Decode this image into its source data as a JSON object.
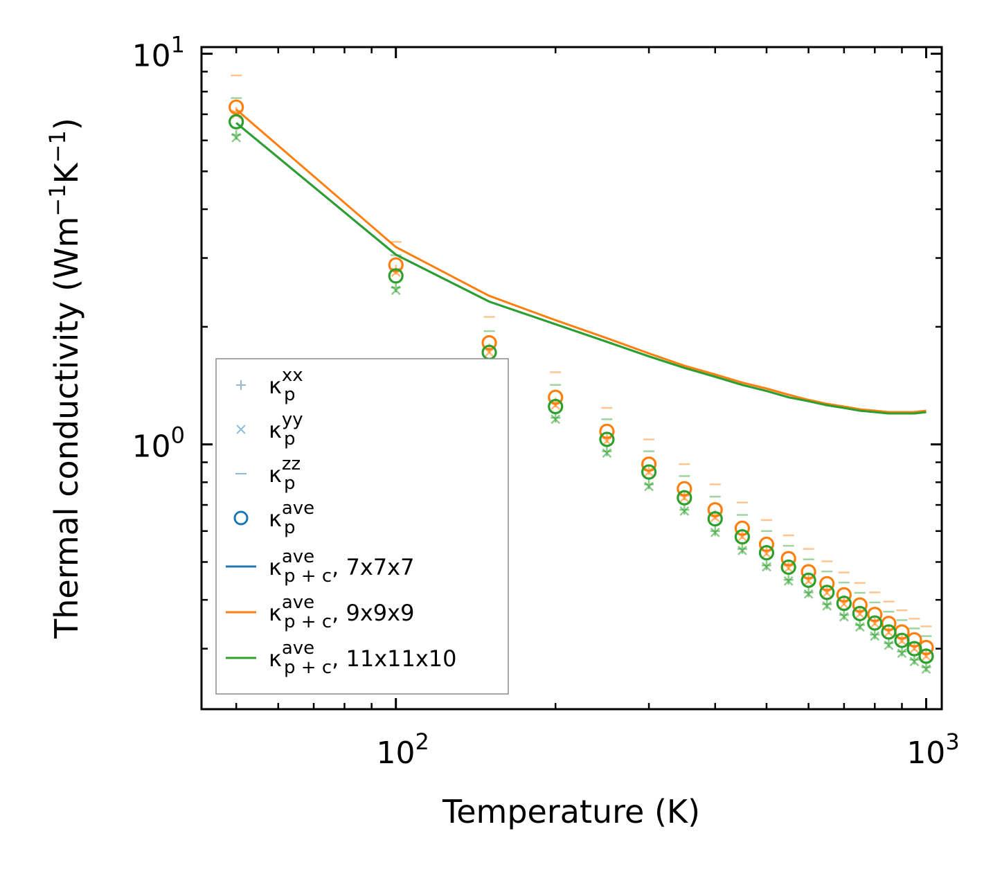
{
  "chart_data": {
    "type": "line",
    "xscale": "log",
    "yscale": "log",
    "xlabel": "Temperature (K)",
    "ylabel": "Thermal conductivity (Wm",
    "ylabel_unit_tail": "K",
    "ylabel_exp": "−1",
    "ylabel_close": ")",
    "xlim": [
      43,
      1070
    ],
    "ylim": [
      0.21,
      10.4
    ],
    "x_ticks": [
      {
        "base": "10",
        "exp": "2",
        "value": 100
      },
      {
        "base": "10",
        "exp": "3",
        "value": 1000
      }
    ],
    "y_ticks": [
      {
        "base": "10",
        "exp": "0",
        "value": 1
      },
      {
        "base": "10",
        "exp": "1",
        "value": 10
      }
    ],
    "x": [
      50,
      100,
      150,
      200,
      250,
      300,
      350,
      400,
      450,
      500,
      550,
      600,
      650,
      700,
      750,
      800,
      850,
      900,
      950,
      1000
    ],
    "line_series": [
      {
        "name": "7x7x7",
        "color": "#1f77b4",
        "values": [
          6.65,
          3.06,
          2.32,
          2.03,
          1.83,
          1.68,
          1.57,
          1.49,
          1.42,
          1.37,
          1.32,
          1.29,
          1.26,
          1.24,
          1.22,
          1.21,
          1.2,
          1.2,
          1.2,
          1.21
        ]
      },
      {
        "name": "9x9x9",
        "color": "#ff7f0e",
        "values": [
          7.2,
          3.2,
          2.4,
          2.08,
          1.87,
          1.71,
          1.59,
          1.51,
          1.44,
          1.39,
          1.34,
          1.3,
          1.27,
          1.25,
          1.23,
          1.22,
          1.21,
          1.21,
          1.21,
          1.22
        ]
      },
      {
        "name": "11x11x10",
        "color": "#2ca02c",
        "values": [
          6.65,
          3.06,
          2.32,
          2.03,
          1.83,
          1.68,
          1.57,
          1.49,
          1.42,
          1.37,
          1.32,
          1.29,
          1.26,
          1.24,
          1.22,
          1.21,
          1.2,
          1.2,
          1.2,
          1.21
        ]
      }
    ],
    "point_series": [
      {
        "name": "9x9x9",
        "color": "#ff7f0e",
        "ave": [
          7.3,
          2.88,
          1.82,
          1.32,
          1.08,
          0.89,
          0.77,
          0.68,
          0.61,
          0.555,
          0.51,
          0.472,
          0.44,
          0.412,
          0.388,
          0.367,
          0.348,
          0.331,
          0.316,
          0.302
        ],
        "xx": [
          7.1,
          2.8,
          1.76,
          1.28,
          1.04,
          0.86,
          0.74,
          0.66,
          0.59,
          0.535,
          0.49,
          0.455,
          0.425,
          0.398,
          0.375,
          0.354,
          0.336,
          0.319,
          0.305,
          0.292
        ],
        "yy": [
          7.0,
          2.76,
          1.72,
          1.26,
          1.02,
          0.85,
          0.73,
          0.65,
          0.58,
          0.525,
          0.482,
          0.447,
          0.417,
          0.39,
          0.368,
          0.348,
          0.33,
          0.314,
          0.3,
          0.287
        ],
        "zz": [
          8.8,
          3.3,
          2.12,
          1.53,
          1.24,
          1.03,
          0.89,
          0.79,
          0.71,
          0.64,
          0.585,
          0.54,
          0.502,
          0.47,
          0.442,
          0.418,
          0.396,
          0.376,
          0.358,
          0.342
        ]
      },
      {
        "name": "11x11x10",
        "color": "#2ca02c",
        "ave": [
          6.7,
          2.7,
          1.72,
          1.25,
          1.03,
          0.85,
          0.73,
          0.645,
          0.58,
          0.528,
          0.485,
          0.449,
          0.418,
          0.392,
          0.369,
          0.349,
          0.331,
          0.315,
          0.3,
          0.287
        ],
        "xx": [
          6.2,
          2.52,
          1.6,
          1.17,
          0.96,
          0.79,
          0.68,
          0.6,
          0.54,
          0.49,
          0.45,
          0.418,
          0.39,
          0.366,
          0.345,
          0.326,
          0.31,
          0.295,
          0.281,
          0.269
        ],
        "yy": [
          6.1,
          2.48,
          1.58,
          1.16,
          0.95,
          0.78,
          0.675,
          0.595,
          0.535,
          0.486,
          0.447,
          0.414,
          0.386,
          0.362,
          0.341,
          0.323,
          0.306,
          0.292,
          0.278,
          0.266
        ],
        "zz": [
          7.7,
          3.05,
          1.95,
          1.42,
          1.16,
          0.96,
          0.83,
          0.735,
          0.66,
          0.6,
          0.55,
          0.508,
          0.473,
          0.443,
          0.417,
          0.394,
          0.373,
          0.355,
          0.338,
          0.323
        ]
      }
    ],
    "legend": {
      "placement": "lower-left",
      "kappa": "κ",
      "sub_p": "p",
      "sub_pc": "p + c",
      "entries": [
        {
          "marker": "plus",
          "sup": "xx",
          "sub": "p",
          "suffix": ""
        },
        {
          "marker": "x",
          "sup": "yy",
          "sub": "p",
          "suffix": ""
        },
        {
          "marker": "dash",
          "sup": "zz",
          "sub": "p",
          "suffix": ""
        },
        {
          "marker": "circle",
          "sup": "ave",
          "sub": "p",
          "suffix": ""
        },
        {
          "marker": "line-blue",
          "sup": "ave",
          "sub": "p + c",
          "suffix": ", 7x7x7"
        },
        {
          "marker": "line-orange",
          "sup": "ave",
          "sub": "p + c",
          "suffix": ", 9x9x9"
        },
        {
          "marker": "line-green",
          "sup": "ave",
          "sub": "p + c",
          "suffix": ", 11x11x10"
        }
      ],
      "colors": {
        "blue": "#1f77b4",
        "orange": "#ff7f0e",
        "green": "#2ca02c"
      }
    }
  }
}
